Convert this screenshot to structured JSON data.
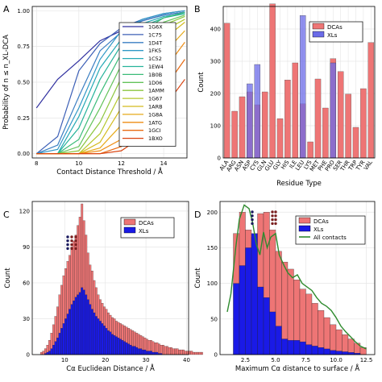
{
  "colors": {
    "dca": "#ee7575",
    "xl_b": "#6b6be8",
    "xl_c": "#1a1ae6",
    "all": "#2e8b2e",
    "grid": "#e6e6e6"
  },
  "chart_data": [
    {
      "panel": "A",
      "type": "line",
      "xlabel": "Contact Distance Threshold / Å",
      "ylabel": "Probability of n ≤ n_XL-DCA",
      "xlim": [
        7.8,
        15.1
      ],
      "ylim": [
        -0.03,
        1.03
      ],
      "xticks": [
        8,
        10,
        12,
        14
      ],
      "yticks": [
        0.0,
        0.25,
        0.5,
        0.75,
        1.0
      ],
      "xticklabels": [
        "8",
        "10",
        "12",
        "14"
      ],
      "yticklabels": [
        "0.00",
        "0.25",
        "0.50",
        "0.75",
        "1.00"
      ],
      "grid": true,
      "legend": "top-right",
      "x": [
        8,
        9,
        10,
        11,
        12,
        13,
        14,
        15
      ],
      "series": [
        {
          "name": "1G6X",
          "color": "#2f2f9f",
          "values": [
            0.32,
            0.52,
            0.65,
            0.79,
            0.86,
            0.93,
            0.97,
            0.99
          ]
        },
        {
          "name": "1C75",
          "color": "#3c5fb6",
          "values": [
            0.0,
            0.12,
            0.58,
            0.77,
            0.88,
            0.94,
            0.98,
            1.0
          ]
        },
        {
          "name": "1D4T",
          "color": "#3a7ec2",
          "values": [
            0.0,
            0.06,
            0.4,
            0.72,
            0.85,
            0.93,
            0.97,
            0.99
          ]
        },
        {
          "name": "1FK5",
          "color": "#2f98c6",
          "values": [
            0.0,
            0.03,
            0.32,
            0.66,
            0.86,
            0.94,
            0.98,
            1.0
          ]
        },
        {
          "name": "1C52",
          "color": "#25a9b5",
          "values": [
            0.0,
            0.0,
            0.26,
            0.6,
            0.8,
            0.91,
            0.96,
            0.98
          ]
        },
        {
          "name": "1EW4",
          "color": "#26b39a",
          "values": [
            0.0,
            0.0,
            0.18,
            0.52,
            0.76,
            0.89,
            0.95,
            0.98
          ]
        },
        {
          "name": "1B0B",
          "color": "#3bbb78",
          "values": [
            0.0,
            0.0,
            0.1,
            0.42,
            0.7,
            0.86,
            0.95,
            0.99
          ]
        },
        {
          "name": "1D06",
          "color": "#63c35a",
          "values": [
            0.0,
            0.0,
            0.05,
            0.32,
            0.62,
            0.8,
            0.92,
            0.97
          ]
        },
        {
          "name": "1AMM",
          "color": "#8cc63f",
          "values": [
            0.0,
            0.0,
            0.02,
            0.22,
            0.53,
            0.75,
            0.9,
            0.96
          ]
        },
        {
          "name": "1G67",
          "color": "#b4c62c",
          "values": [
            0.0,
            0.0,
            0.0,
            0.14,
            0.43,
            0.68,
            0.86,
            0.94
          ]
        },
        {
          "name": "1ARB",
          "color": "#d3bb1f",
          "values": [
            0.0,
            0.0,
            0.0,
            0.08,
            0.32,
            0.58,
            0.8,
            0.92
          ]
        },
        {
          "name": "1G8A",
          "color": "#e6a919",
          "values": [
            0.0,
            0.0,
            0.0,
            0.04,
            0.2,
            0.46,
            0.7,
            0.86
          ]
        },
        {
          "name": "1ATG",
          "color": "#ee8d15",
          "values": [
            0.0,
            0.0,
            0.0,
            0.02,
            0.1,
            0.33,
            0.58,
            0.78
          ]
        },
        {
          "name": "1GCI",
          "color": "#e86a12",
          "values": [
            0.0,
            0.0,
            0.0,
            0.0,
            0.05,
            0.22,
            0.45,
            0.66
          ]
        },
        {
          "name": "1BXO",
          "color": "#d9420f",
          "values": [
            0.0,
            0.0,
            0.0,
            0.0,
            0.02,
            0.12,
            0.32,
            0.52
          ]
        }
      ]
    },
    {
      "panel": "B",
      "type": "bar",
      "xlabel": "Residue Type",
      "ylabel": "Count",
      "ylim": [
        0,
        470
      ],
      "yticks": [
        0,
        100,
        200,
        300,
        400
      ],
      "yticklabels": [
        "0",
        "100",
        "200",
        "300",
        "400"
      ],
      "grid": true,
      "legend": "top-right",
      "categories": [
        "ALA",
        "ARG",
        "ASN",
        "ASP",
        "CYS",
        "GLN",
        "GLU",
        "GLY",
        "HIS",
        "ILE",
        "LEU",
        "LYS",
        "MET",
        "PHE",
        "PRO",
        "SER",
        "THR",
        "TRP",
        "TYR",
        "VAL"
      ],
      "series": [
        {
          "name": "DCAs",
          "values": [
            418,
            145,
            190,
            205,
            165,
            205,
            478,
            122,
            242,
            295,
            168,
            50,
            245,
            155,
            308,
            268,
            198,
            95,
            215,
            358
          ]
        },
        {
          "name": "XLs",
          "values": [
            0,
            0,
            0,
            230,
            290,
            0,
            0,
            0,
            0,
            0,
            442,
            0,
            0,
            0,
            295,
            0,
            0,
            0,
            0,
            0
          ]
        }
      ]
    },
    {
      "panel": "C",
      "type": "bar",
      "xlabel": "Cα Euclidean Distance / Å",
      "ylabel": "Count",
      "xlim": [
        2,
        40.5
      ],
      "ylim": [
        0,
        128
      ],
      "xticks": [
        10,
        20,
        30,
        40
      ],
      "xticklabels": [
        "10",
        "20",
        "30",
        "40"
      ],
      "yticks": [
        0,
        30,
        60,
        90,
        120
      ],
      "yticklabels": [
        "0",
        "30",
        "60",
        "90",
        "120"
      ],
      "grid": true,
      "legend": "top-right",
      "bin_start": 4.0,
      "bin_width": 0.5,
      "series": [
        {
          "name": "DCAs",
          "values": [
            2,
            3,
            5,
            8,
            12,
            18,
            25,
            32,
            40,
            50,
            58,
            66,
            72,
            78,
            83,
            90,
            95,
            100,
            108,
            115,
            126,
            112,
            100,
            85,
            75,
            70,
            62,
            56,
            50,
            46,
            43,
            40,
            38,
            35,
            33,
            31,
            30,
            28,
            27,
            26,
            25,
            24,
            23,
            22,
            21,
            20,
            19,
            18,
            17,
            16,
            15,
            14,
            13,
            12,
            12,
            11,
            10,
            10,
            9,
            8,
            8,
            7,
            7,
            6,
            6,
            5,
            5,
            5,
            4,
            4,
            4,
            3,
            3,
            3,
            3,
            2,
            2,
            2,
            2,
            2
          ]
        },
        {
          "name": "XLs",
          "values": [
            0,
            0,
            1,
            2,
            3,
            5,
            8,
            11,
            14,
            18,
            22,
            26,
            30,
            34,
            38,
            42,
            45,
            48,
            50,
            52,
            56,
            54,
            50,
            46,
            42,
            38,
            35,
            32,
            30,
            28,
            26,
            24,
            22,
            20,
            19,
            17,
            16,
            15,
            14,
            13,
            12,
            11,
            10,
            9,
            8,
            7,
            7,
            6,
            5,
            5,
            4,
            4,
            3,
            3,
            3,
            2,
            2,
            2,
            1,
            1
          ]
        }
      ]
    },
    {
      "panel": "D",
      "type": "bar",
      "xlabel": "Maximum Cα distance to surface / Å",
      "ylabel": "Count",
      "xlim": [
        0.4,
        13.2
      ],
      "ylim": [
        0,
        215
      ],
      "xticks": [
        2.5,
        5.0,
        7.5,
        10.0,
        12.5
      ],
      "xticklabels": [
        "2.5",
        "5.0",
        "7.5",
        "10.0",
        "12.5"
      ],
      "yticks": [
        0,
        50,
        100,
        150,
        200
      ],
      "yticklabels": [
        "0",
        "50",
        "100",
        "150",
        "200"
      ],
      "grid": true,
      "legend": "top-right",
      "bin_start": 1.0,
      "bin_width": 0.5,
      "series": [
        {
          "name": "DCAs",
          "values": [
            0,
            170,
            200,
            175,
            165,
            198,
            200,
            175,
            145,
            130,
            120,
            105,
            92,
            85,
            72,
            62,
            52,
            42,
            35,
            28,
            22,
            16,
            10
          ]
        },
        {
          "name": "XLs",
          "values": [
            0,
            100,
            125,
            150,
            170,
            95,
            80,
            60,
            40,
            22,
            20,
            20,
            18,
            14,
            12,
            10,
            8,
            6,
            5,
            4,
            3,
            2,
            0
          ]
        },
        {
          "name": "All contacts",
          "x": [
            1.0,
            1.3,
            1.7,
            2.0,
            2.4,
            2.8,
            3.1,
            3.4,
            3.7,
            4.0,
            4.3,
            4.6,
            5.0,
            5.3,
            5.7,
            6.0,
            6.4,
            6.8,
            7.2,
            7.6,
            8.0,
            8.4,
            8.8,
            9.2,
            9.6,
            10.0,
            10.4,
            10.8,
            11.2,
            11.6,
            12.0,
            12.5
          ],
          "values": [
            60,
            85,
            150,
            190,
            210,
            205,
            185,
            155,
            140,
            172,
            150,
            165,
            170,
            140,
            125,
            115,
            108,
            112,
            100,
            95,
            90,
            80,
            72,
            68,
            62,
            52,
            40,
            32,
            25,
            18,
            12,
            8
          ]
        }
      ]
    }
  ]
}
